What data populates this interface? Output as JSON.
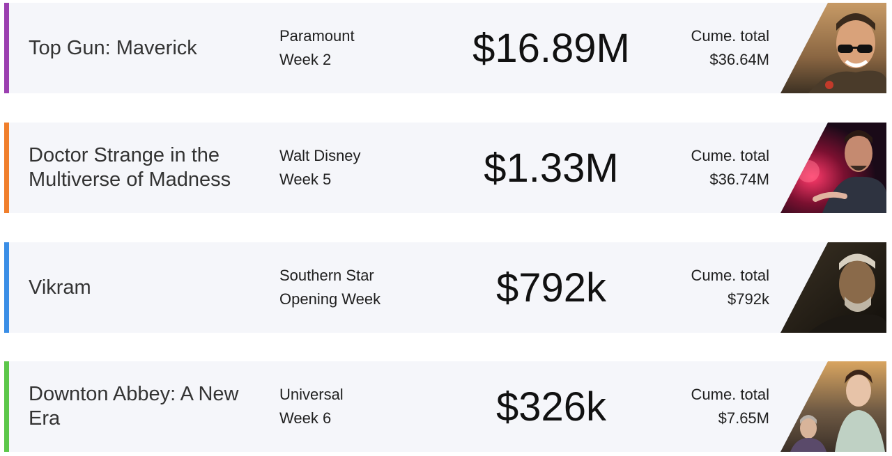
{
  "rows": [
    {
      "title": "Top Gun: Maverick",
      "distributor": "Paramount",
      "week": "Week 2",
      "gross": "$16.89M",
      "cume_label": "Cume. total",
      "cume_value": "$36.64M",
      "accent_color": "#9b3fb0",
      "poster_icon": "top-gun-maverick-poster"
    },
    {
      "title": "Doctor Strange in the Multiverse of Madness",
      "distributor": "Walt Disney",
      "week": "Week 5",
      "gross": "$1.33M",
      "cume_label": "Cume. total",
      "cume_value": "$36.74M",
      "accent_color": "#f07f2c",
      "poster_icon": "doctor-strange-poster"
    },
    {
      "title": "Vikram",
      "distributor": "Southern Star",
      "week": "Opening Week",
      "gross": "$792k",
      "cume_label": "Cume. total",
      "cume_value": "$792k",
      "accent_color": "#3a8ee6",
      "poster_icon": "vikram-poster"
    },
    {
      "title": "Downton Abbey: A New Era",
      "distributor": "Universal",
      "week": "Week 6",
      "gross": "$326k",
      "cume_label": "Cume. total",
      "cume_value": "$7.65M",
      "accent_color": "#5cc74a",
      "poster_icon": "downton-abbey-poster"
    }
  ]
}
